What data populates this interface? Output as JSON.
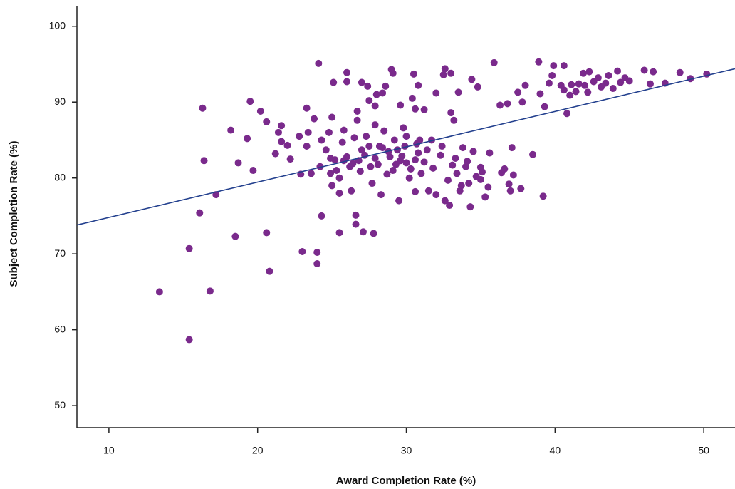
{
  "chart_data": {
    "type": "scatter",
    "x_label": "Award Completion Rate (%)",
    "y_label": "Subject Completion Rate (%)",
    "color": "#7a2a8c",
    "xlim": [
      7.85,
      52.1
    ],
    "ylim": [
      47.1,
      102.7
    ],
    "xticks": [
      10,
      20,
      30,
      40,
      50
    ],
    "yticks": [
      50,
      60,
      70,
      80,
      90,
      100
    ],
    "x": [
      13.4,
      15.4,
      15.4,
      16.8,
      16.3,
      16.4,
      16.1,
      17.2,
      18.2,
      18.5,
      18.7,
      19.3,
      19.5,
      19.7,
      20.2,
      20.6,
      20.6,
      20.8,
      21.2,
      21.4,
      21.6,
      21.6,
      22,
      22.2,
      22.8,
      22.9,
      23,
      23.3,
      23.3,
      23.4,
      23.6,
      23.8,
      24,
      24,
      24.1,
      24.2,
      24.3,
      24.3,
      24.6,
      24.8,
      24.9,
      25,
      25,
      25.1,
      25.2,
      25.3,
      25.5,
      25.5,
      25.5,
      25.7,
      25.8,
      26,
      26,
      26,
      26.3,
      26.4,
      26.5,
      26.6,
      26.6,
      26.7,
      26.7,
      26.8,
      27,
      27,
      27.1,
      27.3,
      27.4,
      27.5,
      27.6,
      27.7,
      27.8,
      27.9,
      27.9,
      27.9,
      28,
      28.2,
      28.3,
      28.4,
      28.5,
      28.6,
      28.7,
      28.9,
      29,
      29.1,
      29.2,
      29.3,
      29.4,
      29.5,
      29.6,
      29.8,
      29.9,
      30,
      30,
      30.2,
      30.4,
      30.5,
      30.6,
      30.6,
      30.6,
      30.8,
      30.9,
      31,
      31.2,
      31.4,
      31.5,
      31.7,
      31.8,
      32,
      32,
      32.3,
      32.5,
      32.6,
      32.6,
      32.8,
      32.9,
      33,
      33,
      33.2,
      33.3,
      33.4,
      33.5,
      33.6,
      33.8,
      34,
      34.2,
      34.3,
      34.4,
      34.5,
      34.8,
      35,
      35,
      35.3,
      35.5,
      35.6,
      35.9,
      36.3,
      36.4,
      36.8,
      36.9,
      37,
      37.1,
      37.2,
      37.5,
      37.7,
      37.8,
      38,
      38.5,
      38.9,
      39,
      39.2,
      39.3,
      39.6,
      39.8,
      39.9,
      40.4,
      40.6,
      40.6,
      40.8,
      41,
      41.1,
      41.4,
      41.6,
      41.9,
      42,
      42.2,
      42.3,
      42.6,
      42.9,
      43.1,
      43.4,
      43.6,
      43.9,
      44.2,
      44.4,
      44.7,
      45,
      46,
      46.4,
      46.6,
      47.4,
      48.4,
      49.1,
      50.2,
      29.1,
      28.8,
      29.6,
      30.3,
      27.2,
      26.2,
      28.1,
      33.7,
      34.7,
      31.2,
      32.4,
      30.7,
      28.4,
      27.5,
      26.9,
      25.8,
      24.9,
      29.7,
      30.8,
      33.1,
      34.1,
      35.1,
      36.6
    ],
    "values": [
      65,
      58.7,
      70.7,
      65.1,
      89.2,
      82.3,
      75.4,
      77.8,
      86.3,
      72.3,
      82,
      85.2,
      90.1,
      81,
      88.8,
      72.8,
      87.4,
      67.7,
      83.2,
      86,
      84.8,
      86.9,
      84.3,
      82.5,
      85.5,
      80.5,
      70.3,
      89.2,
      84.2,
      86,
      80.6,
      87.8,
      68.7,
      70.2,
      95.1,
      81.5,
      75,
      85,
      83.7,
      86,
      80.6,
      88,
      79,
      92.6,
      82.4,
      81,
      78,
      72.8,
      80,
      84.7,
      86.3,
      93.9,
      92.7,
      82.8,
      78.3,
      81.9,
      85.3,
      73.9,
      75.1,
      88.8,
      87.6,
      82.3,
      92.6,
      83.7,
      72.9,
      85.5,
      92.1,
      90.2,
      81.5,
      79.3,
      72.7,
      87,
      89.5,
      82.6,
      91,
      84.2,
      77.8,
      91.2,
      86.2,
      92.1,
      80.5,
      82.8,
      94.3,
      93.8,
      85,
      81.8,
      83.7,
      77,
      89.6,
      86.6,
      84.2,
      82,
      85.5,
      80,
      90.5,
      93.7,
      89.1,
      82.4,
      78.2,
      92.2,
      85,
      80.6,
      89,
      83.7,
      78.3,
      85,
      81.3,
      91.2,
      77.8,
      83,
      93.6,
      94.4,
      77,
      79.7,
      76.4,
      88.6,
      93.8,
      87.6,
      82.6,
      80.6,
      91.3,
      78.3,
      84,
      81.5,
      79.3,
      76.2,
      93,
      83.5,
      92,
      81.4,
      79.8,
      77.5,
      78.8,
      83.3,
      95.2,
      89.6,
      80.7,
      89.8,
      79.2,
      78.3,
      84,
      80.4,
      91.3,
      78.6,
      90,
      92.2,
      83.1,
      95.3,
      91.1,
      77.6,
      89.4,
      92.5,
      93.5,
      94.8,
      92.2,
      91.6,
      94.8,
      88.5,
      90.9,
      92.3,
      91.4,
      92.4,
      93.8,
      92.2,
      91.3,
      94,
      92.7,
      93.2,
      92,
      92.5,
      93.5,
      91.8,
      94.1,
      92.6,
      93.2,
      92.8,
      94.2,
      92.4,
      94,
      92.5,
      93.9,
      93.1,
      93.7,
      81,
      83.5,
      82.3,
      81.2,
      83,
      81.5,
      81.8,
      79,
      80.2,
      82.1,
      84.2,
      84.5,
      84,
      84.2,
      80.9,
      82.3,
      82.6,
      82.9,
      83.3,
      81.7,
      82.2,
      80.8,
      81.2
    ],
    "fit_line": {
      "color": "#23408e",
      "x": [
        7.85,
        52.1
      ],
      "y": [
        73.8,
        94.4
      ]
    }
  }
}
